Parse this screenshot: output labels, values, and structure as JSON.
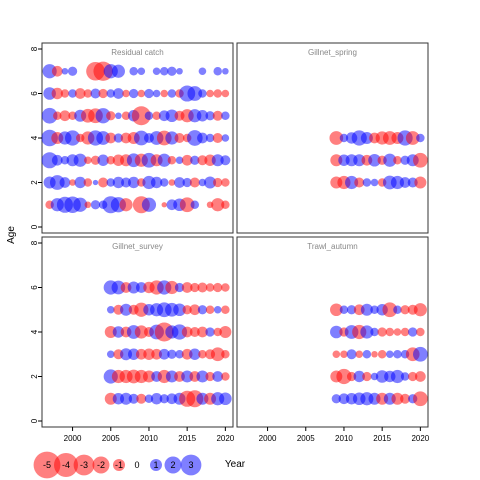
{
  "chart_data": {
    "type": "scatter",
    "subtype": "bubble-residuals",
    "xlabel": "Year",
    "ylabel": "Age",
    "xlim": [
      1996,
      2021
    ],
    "ylim": [
      0,
      8
    ],
    "x_ticks": [
      2000,
      2005,
      2010,
      2015,
      2020
    ],
    "y_ticks": [
      0,
      2,
      4,
      6,
      8
    ],
    "colors": {
      "positive": "#0000FF",
      "negative": "#FF0000"
    },
    "legend": {
      "placement": "bottom-left",
      "values": [
        -5,
        -4,
        -3,
        -2,
        -1,
        0,
        1,
        2,
        3
      ],
      "labels": [
        "-5",
        "-4",
        "-3",
        "-2",
        "-1",
        "0",
        "1",
        "2",
        "3"
      ]
    },
    "panels": [
      {
        "title": "Residual catch",
        "ages": [
          1,
          2,
          3,
          4,
          5,
          6,
          7
        ],
        "years": [
          1997,
          1998,
          1999,
          2000,
          2001,
          2002,
          2003,
          2004,
          2005,
          2006,
          2007,
          2008,
          2009,
          2010,
          2011,
          2012,
          2013,
          2014,
          2015,
          2016,
          2017,
          2018,
          2019,
          2020
        ],
        "residuals": [
          [
            -0.5,
            1.2,
            1.8,
            1.9,
            1.4,
            -0.3,
            0.6,
            0.5,
            2.0,
            1.6,
            -1.2,
            0,
            -2.0,
            1.4,
            0,
            -0.2,
            0.8,
            1.1,
            -1.5,
            0.5,
            0,
            -0.3,
            -1.2,
            -0.5
          ],
          [
            1.0,
            1.5,
            0.8,
            -0.3,
            0.9,
            -0.5,
            0.2,
            -0.7,
            0.5,
            0.9,
            0.7,
            0.9,
            -0.5,
            1.2,
            0.9,
            0.5,
            -0.3,
            0.8,
            0.6,
            -0.7,
            0.4,
            1.0,
            -0.6,
            -0.5
          ],
          [
            1.8,
            0.8,
            0.5,
            1.0,
            1.2,
            -0.4,
            -0.6,
            0.9,
            -0.5,
            -0.9,
            -1.0,
            1.3,
            -1.2,
            1.5,
            -1.0,
            1.2,
            -0.5,
            0.4,
            -0.8,
            0.6,
            -0.7,
            -0.9,
            1.0,
            0.7
          ],
          [
            1.9,
            -1.0,
            1.2,
            1.6,
            -0.5,
            -1.2,
            1.6,
            1.3,
            -0.8,
            0.6,
            -0.8,
            -1.0,
            1.5,
            0.7,
            1.3,
            -1.5,
            1.2,
            -0.7,
            -0.5,
            1.7,
            0.8,
            0.5,
            -0.7,
            0.4
          ],
          [
            1.7,
            -0.5,
            -0.8,
            -0.5,
            1.0,
            -1.3,
            -1.5,
            1.6,
            -0.6,
            0.3,
            -0.5,
            0.9,
            -2.5,
            0.5,
            -0.5,
            0.8,
            1.1,
            -0.7,
            -1.2,
            1.2,
            0.9,
            0.6,
            -0.7,
            0.5
          ],
          [
            1.1,
            -0.9,
            -0.5,
            0.5,
            -0.8,
            -0.5,
            0.7,
            -0.6,
            0.5,
            0.8,
            -0.4,
            0.6,
            -0.4,
            0.6,
            0.4,
            -0.4,
            0.5,
            -0.5,
            1.8,
            1.5,
            0.5,
            -0.4,
            -0.5,
            -0.4
          ],
          [
            1.4,
            -0.8,
            0.3,
            0.6,
            0,
            0,
            -2.4,
            -2.6,
            1.4,
            1.2,
            0,
            0.5,
            0.4,
            0,
            0.4,
            0.5,
            0.6,
            0.3,
            0,
            0,
            0.4,
            0,
            0.5,
            0.3
          ]
        ]
      },
      {
        "title": "Gillnet_spring",
        "ages": [
          2,
          3,
          4
        ],
        "years": [
          2009,
          2010,
          2011,
          2012,
          2013,
          2014,
          2015,
          2016,
          2017,
          2018,
          2019,
          2020
        ],
        "residuals": [
          [
            -1.0,
            -1.2,
            1.2,
            -0.7,
            0.5,
            0.4,
            -0.5,
            1.3,
            1.2,
            0.8,
            0.7,
            -1.0
          ],
          [
            -1.0,
            0.9,
            1.0,
            1.0,
            -0.8,
            1.1,
            -0.6,
            1.2,
            -0.5,
            0.6,
            1.0,
            -1.5
          ],
          [
            -1.3,
            0.5,
            0.9,
            1.6,
            1.0,
            -0.8,
            -1.2,
            -1.3,
            -1.0,
            1.6,
            -1.3,
            0.5
          ]
        ]
      },
      {
        "title": "Gillnet_survey",
        "ages": [
          1,
          2,
          3,
          4,
          5,
          6
        ],
        "years": [
          2005,
          2006,
          2007,
          2008,
          2009,
          2010,
          2011,
          2012,
          2013,
          2014,
          2015,
          2016,
          2017,
          2018,
          2019,
          2020
        ],
        "residuals": [
          [
            -1.0,
            0.9,
            1.0,
            0.7,
            -0.7,
            0.5,
            0.9,
            0.6,
            0.8,
            1.0,
            -1.8,
            -2.0,
            1.0,
            -1.0,
            1.2,
            1.1
          ],
          [
            1.4,
            -1.2,
            -1.2,
            -1.3,
            -1.2,
            -1.0,
            0.8,
            -1.2,
            1.0,
            -0.8,
            1.0,
            -0.8,
            1.0,
            -0.6,
            0.8,
            -0.5
          ],
          [
            0.4,
            -0.7,
            1.0,
            0.9,
            -0.8,
            -0.9,
            -0.8,
            0.8,
            0.6,
            0.5,
            -0.8,
            0.9,
            -0.5,
            -0.7,
            -1.3,
            -0.5
          ],
          [
            -1.0,
            0.9,
            -0.8,
            1.3,
            -1.2,
            -0.7,
            1.5,
            -2.5,
            1.2,
            1.6,
            -0.8,
            -0.7,
            -0.8,
            0.6,
            -0.5,
            -1.0
          ],
          [
            0.4,
            -0.7,
            1.0,
            -0.7,
            -1.4,
            0.9,
            1.2,
            1.5,
            1.3,
            1.1,
            -0.6,
            -0.8,
            0.6,
            -0.5,
            0.4,
            -0.5
          ],
          [
            1.4,
            1.3,
            -0.8,
            1.0,
            0.8,
            -0.9,
            -1.4,
            1.4,
            -1.2,
            0.6,
            -0.8,
            -0.6,
            -0.7,
            -0.5,
            -0.6,
            -0.5
          ]
        ]
      },
      {
        "title": "Trawl_autumn",
        "ages": [
          1,
          2,
          3,
          4,
          5
        ],
        "years": [
          2009,
          2010,
          2011,
          2012,
          2013,
          2014,
          2015,
          2016,
          2017,
          2018,
          2019,
          2020
        ],
        "residuals": [
          [
            0.6,
            0.8,
            0.9,
            1.1,
            1.2,
            1.0,
            -1.0,
            1.0,
            -1.0,
            -0.7,
            0.6,
            -1.5
          ],
          [
            -1.0,
            -1.6,
            -0.6,
            0.9,
            -0.6,
            0.4,
            1.1,
            0.9,
            1.2,
            0.5,
            -0.6,
            -0.8
          ],
          [
            -0.4,
            -0.4,
            0.7,
            -0.4,
            0.5,
            -0.3,
            -0.5,
            0.4,
            0.5,
            0.5,
            -1.3,
            1.5
          ],
          [
            1.1,
            -0.6,
            1.3,
            -1.4,
            1.2,
            0.5,
            -0.6,
            -0.5,
            -0.4,
            -0.5,
            0.6,
            -0.5
          ],
          [
            -1.1,
            0.5,
            0.6,
            -0.8,
            1.0,
            0.5,
            0.9,
            -1.5,
            0.5,
            -0.6,
            -0.7,
            -1.2
          ]
        ]
      }
    ]
  }
}
